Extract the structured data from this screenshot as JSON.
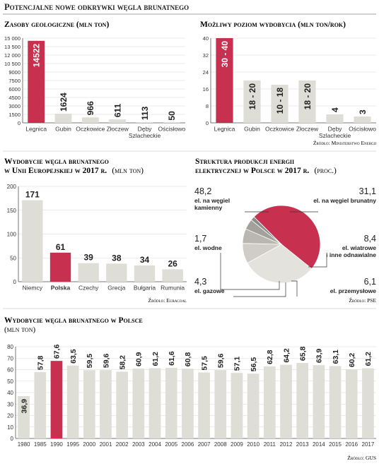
{
  "header": {
    "title": "Potencjalne nowe odkrywki węgla brunatnego"
  },
  "colors": {
    "accent": "#c8304f",
    "bar": "#deddd6",
    "axis": "#555555",
    "grid": "#d8d8d8"
  },
  "chart_data": [
    {
      "id": "c1",
      "type": "bar",
      "title": "Zasoby geologiczne (mln ton)",
      "categories": [
        "Legnica",
        "Gubin",
        "Oczkowice",
        "Złoczew",
        "Dęby Szlacheckie",
        "Ościsłowo"
      ],
      "category_lines": [
        [
          "Legnica"
        ],
        [
          "Gubin"
        ],
        [
          "Oczkowice"
        ],
        [
          "Złoczew"
        ],
        [
          "Dęby",
          "Szlacheckie"
        ],
        [
          "Ościsłowo"
        ]
      ],
      "values": [
        14522,
        1624,
        966,
        611,
        113,
        50
      ],
      "value_labels": [
        "14522",
        "1624",
        "966",
        "611",
        "113",
        "50"
      ],
      "highlight": [
        0
      ],
      "yticks": [
        "0",
        "1500",
        "3000",
        "4500",
        "6000",
        "7500",
        "9000",
        "10 500",
        "12 000",
        "13 500",
        "15 000"
      ],
      "ylim": [
        0,
        15000
      ]
    },
    {
      "id": "c2",
      "type": "bar",
      "title": "Możliwy poziom wydobycia (mln ton/rok)",
      "categories": [
        "Legnica",
        "Gubin",
        "Oczkowice",
        "Złoczew",
        "Dęby Szlacheckie",
        "Ościsłowo"
      ],
      "category_lines": [
        [
          "Legnica"
        ],
        [
          "Gubin"
        ],
        [
          "Oczkowice"
        ],
        [
          "Złoczew"
        ],
        [
          "Dęby",
          "Szlacheckie"
        ],
        [
          "Ościsłowo"
        ]
      ],
      "values": [
        40,
        20,
        18,
        20,
        4,
        3
      ],
      "value_labels": [
        "30 - 40",
        "18 - 20",
        "10 - 18",
        "18 - 20",
        "4",
        "3"
      ],
      "highlight": [
        0
      ],
      "yticks": [
        "0",
        "8",
        "16",
        "24",
        "32",
        "40"
      ],
      "ylim": [
        0,
        40
      ],
      "source": "Źródło: Ministerstwo Energii"
    },
    {
      "id": "c3",
      "type": "bar",
      "title_lines": [
        "Wydobycie węgla brunatnego",
        "w Unii Europejskiej w 2017 r."
      ],
      "unit": "(mln ton)",
      "categories": [
        "Niemcy",
        "Polska",
        "Czechy",
        "Grecja",
        "Bułgaria",
        "Rumunia"
      ],
      "values": [
        171,
        61,
        39,
        38,
        34,
        26
      ],
      "value_labels": [
        "171",
        "61",
        "39",
        "38",
        "34",
        "26"
      ],
      "highlight": [
        1
      ],
      "yticks": [
        "0",
        "50",
        "100",
        "150",
        "200"
      ],
      "ylim": [
        0,
        200
      ],
      "source": "Źródło: Euracoal"
    },
    {
      "id": "c4",
      "type": "pie",
      "title_lines": [
        "Struktura produkcji energii",
        "elektrycznej w Polsce w 2017 r."
      ],
      "unit": "(proc.)",
      "slices": [
        {
          "label": "el. na węgiel kamienny",
          "value": 48.2,
          "value_text": "48,2",
          "label_lines": [
            "el. na węgiel",
            "kamienny"
          ],
          "color": "#c8304f"
        },
        {
          "label": "el. na węgiel brunatny",
          "value": 31.1,
          "value_text": "31,1",
          "label_lines": [
            "el. na węgiel brunatny"
          ],
          "color": "#e4e2dc"
        },
        {
          "label": "el. wiatrowe i inne odnawialne",
          "value": 8.4,
          "value_text": "8,4",
          "label_lines": [
            "el. wiatrowe",
            "i inne odnawialne"
          ],
          "color": "#cfcdc6"
        },
        {
          "label": "el. przemysłowe",
          "value": 6.1,
          "value_text": "6,1",
          "label_lines": [
            "el. przemysłowe"
          ],
          "color": "#b9b7b0"
        },
        {
          "label": "el. gazowe",
          "value": 4.3,
          "value_text": "4,3",
          "label_lines": [
            "el. gazowe"
          ],
          "color": "#a3a19b"
        },
        {
          "label": "el. wodne",
          "value": 1.7,
          "value_text": "1,7",
          "label_lines": [
            "el. wodne"
          ],
          "color": "#8e8c87"
        }
      ],
      "source": "Źródło: PSE"
    },
    {
      "id": "c5",
      "type": "bar",
      "title": "Wydobycie węgla brunatnego w Polsce",
      "unit": "(mln ton)",
      "categories": [
        "1980",
        "1985",
        "1990",
        "1995",
        "2000",
        "2001",
        "2002",
        "2003",
        "2004",
        "2005",
        "2006",
        "2007",
        "2008",
        "2009",
        "2010",
        "2011",
        "2012",
        "2013",
        "2014",
        "2015",
        "2016",
        "2017"
      ],
      "values": [
        36.9,
        57.8,
        67.6,
        63.5,
        59.5,
        59.6,
        58.2,
        60.9,
        61.2,
        61.6,
        60.8,
        57.5,
        59.6,
        57.1,
        56.5,
        62.8,
        64.2,
        65.8,
        63.9,
        63.1,
        60.2,
        61.2
      ],
      "value_labels": [
        "36,9",
        "57,8",
        "67,6",
        "63,5",
        "59,5",
        "59,6",
        "58,2",
        "60,9",
        "61,2",
        "61,6",
        "60,8",
        "57,5",
        "59,6",
        "57,1",
        "56,5",
        "62,8",
        "64,2",
        "65,8",
        "63,9",
        "63,1",
        "60,2",
        "61,2"
      ],
      "highlight": [
        2
      ],
      "yticks": [
        "0",
        "10",
        "20",
        "30",
        "40",
        "50",
        "60",
        "70",
        "80"
      ],
      "ylim": [
        0,
        80
      ],
      "source": "Źródło: GUS"
    }
  ]
}
